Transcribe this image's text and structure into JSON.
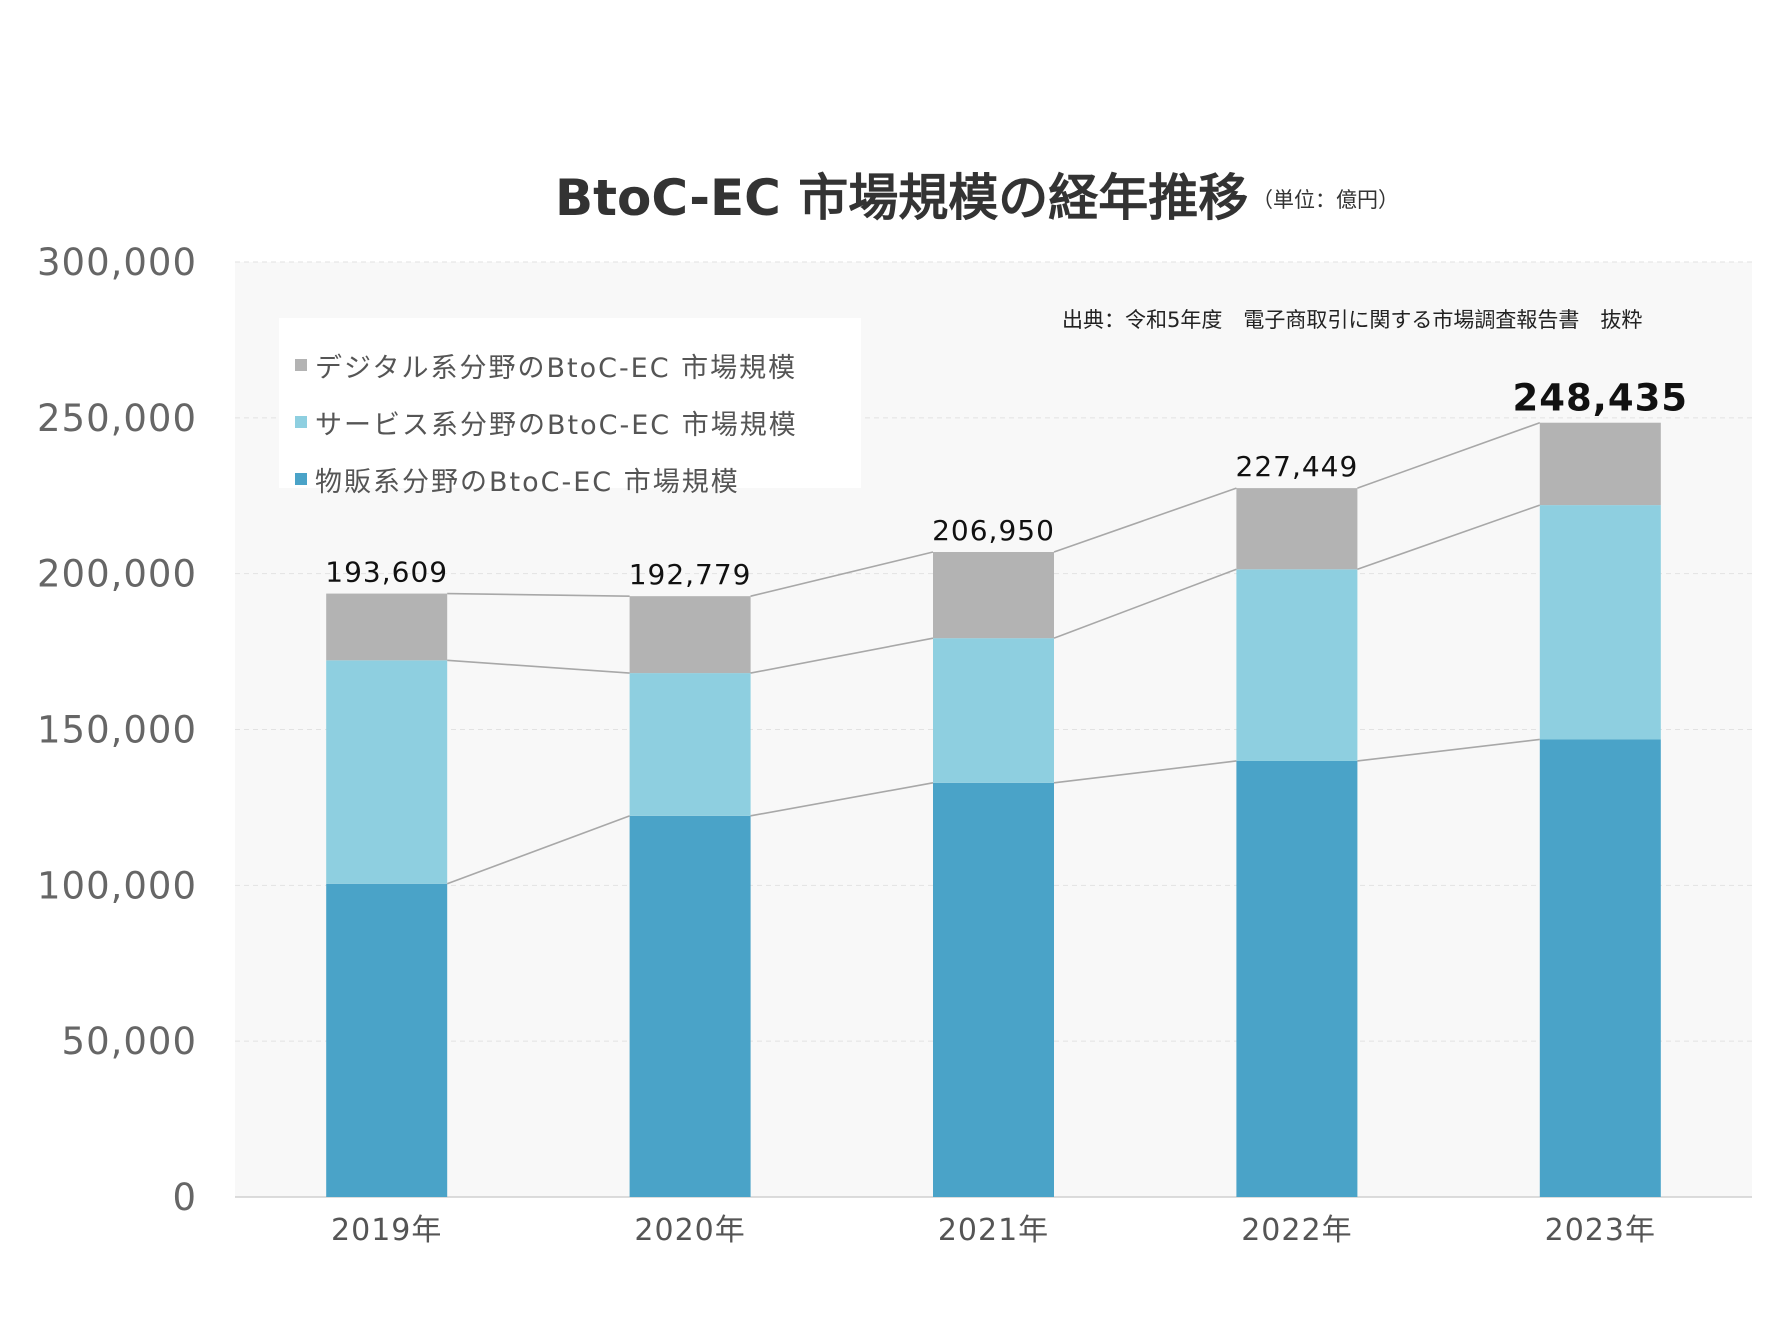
{
  "chart_data": {
    "type": "bar",
    "stacked": true,
    "title": "BtoC-EC 市場規模の経年推移",
    "unit_note": "（単位：億円）",
    "source_note": "出典：令和5年度　電子商取引に関する市場調査報告書　抜粋",
    "categories": [
      "2019年",
      "2020年",
      "2021年",
      "2022年",
      "2023年"
    ],
    "series": [
      {
        "name": "物販系分野のBtoC-EC 市場規模",
        "color": "#4aa3c8",
        "values": [
          100500,
          122300,
          132900,
          139900,
          146800
        ]
      },
      {
        "name": "サービス系分野のBtoC-EC 市場規模",
        "color": "#8ecfe0",
        "values": [
          71700,
          45800,
          46400,
          61500,
          75200
        ]
      },
      {
        "name": "デジタル系分野のBtoC-EC 市場規模",
        "color": "#b3b3b3",
        "values": [
          21409,
          24679,
          27650,
          26049,
          26435
        ]
      }
    ],
    "totals": [
      193609,
      192779,
      206950,
      227449,
      248435
    ],
    "total_labels": [
      "193,609",
      "192,779",
      "206,950",
      "227,449",
      "248,435"
    ],
    "ylim": [
      0,
      300000
    ],
    "yticks": [
      0,
      50000,
      100000,
      150000,
      200000,
      250000,
      300000
    ],
    "ytick_labels": [
      "0",
      "50,000",
      "100,000",
      "150,000",
      "200,000",
      "250,000",
      "300,000"
    ],
    "xlabel": "",
    "ylabel": "",
    "grid": true,
    "legend_position": "top-left",
    "connector_lines": true
  }
}
